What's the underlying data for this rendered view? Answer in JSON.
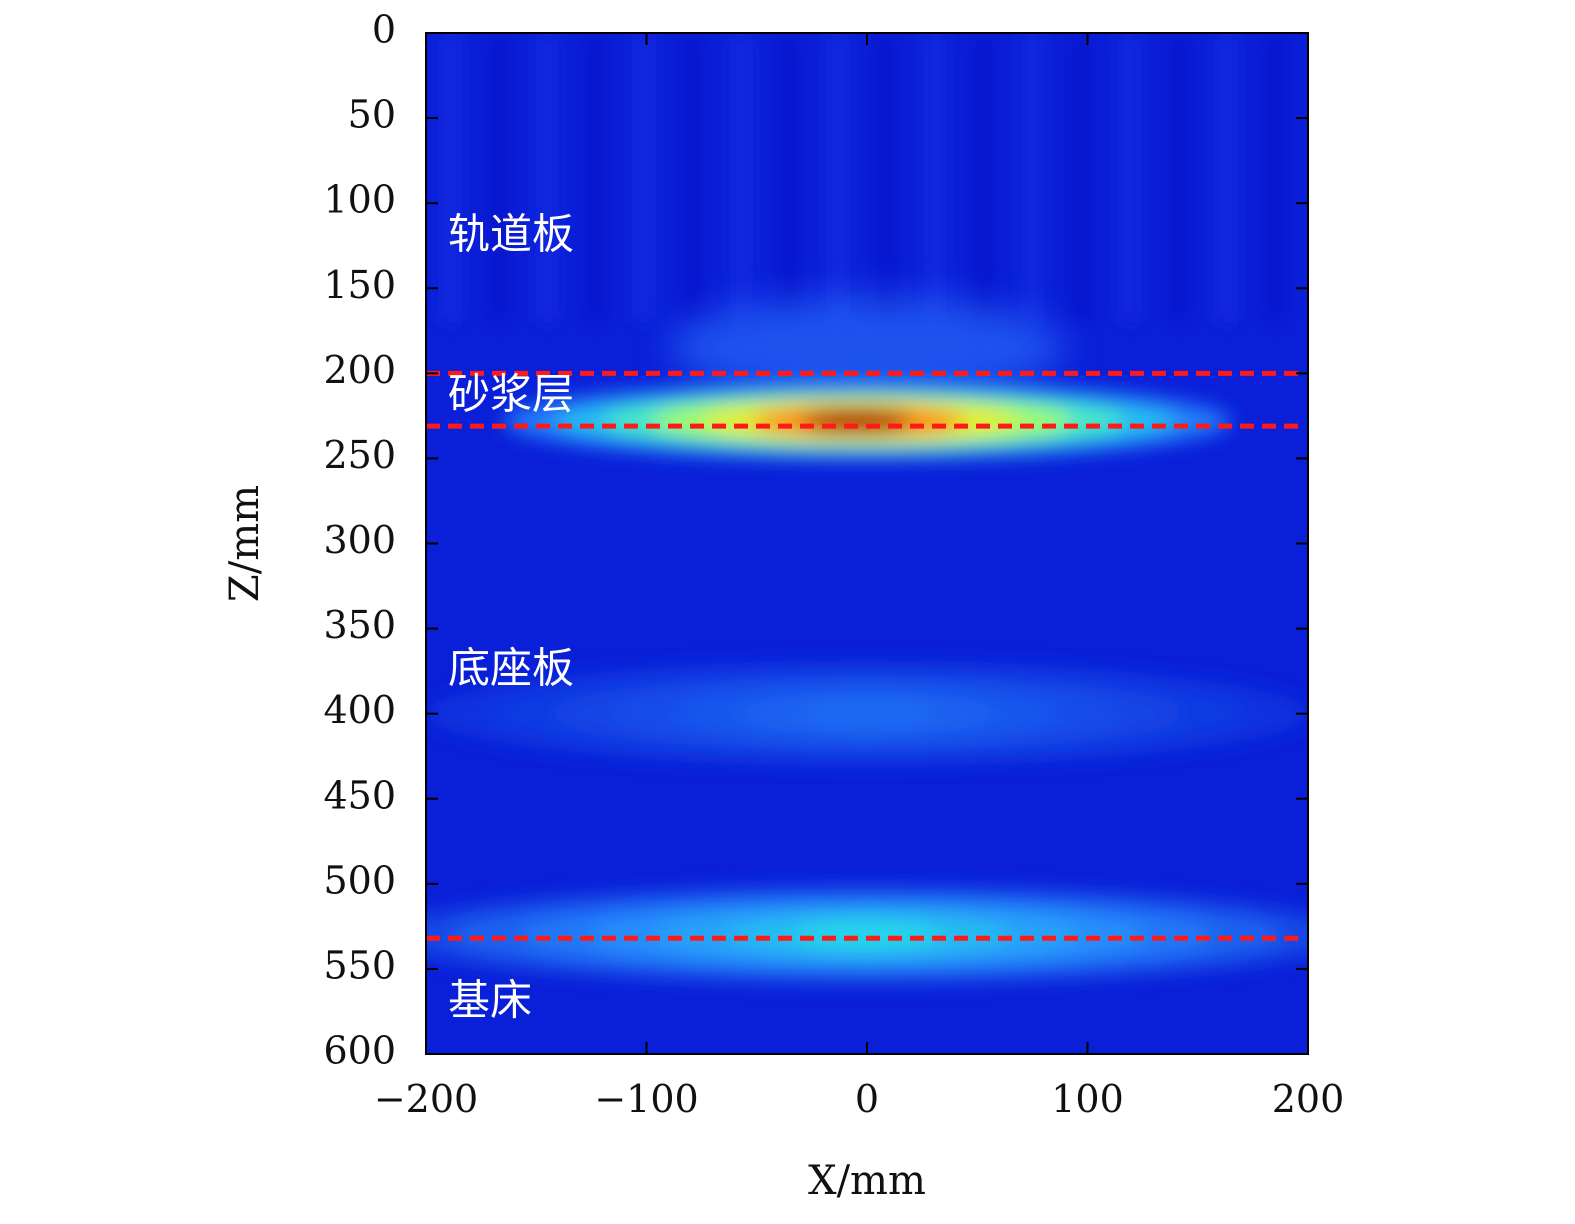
{
  "chart_data": {
    "type": "heatmap",
    "title": "",
    "xlabel": "X/mm",
    "ylabel": "Z/mm",
    "xlim": [
      -200,
      200
    ],
    "ylim": [
      0,
      600
    ],
    "y_inverted": true,
    "x_ticks": [
      -200,
      -100,
      0,
      100,
      200
    ],
    "x_tick_labels": [
      "−200",
      "−100",
      "0",
      "100",
      "200"
    ],
    "y_ticks": [
      0,
      50,
      100,
      150,
      200,
      250,
      300,
      350,
      400,
      450,
      500,
      550,
      600
    ],
    "y_tick_labels": [
      "0",
      "50",
      "100",
      "150",
      "200",
      "250",
      "300",
      "350",
      "400",
      "450",
      "500",
      "550",
      "600"
    ],
    "colormap": "jet",
    "colors": {
      "boundary_line": "#ff1a1a",
      "region_label": "#ffffff",
      "background_low": "#0a1fd8"
    },
    "layer_boundaries_z": [
      200,
      231,
      532
    ],
    "region_labels": [
      {
        "text": "轨道板",
        "x": -190,
        "z": 120
      },
      {
        "text": "砂浆层",
        "x": -190,
        "z": 214
      },
      {
        "text": "底座板",
        "x": -190,
        "z": 375
      },
      {
        "text": "基床",
        "x": -190,
        "z": 570
      }
    ],
    "intensity_features": [
      {
        "name": "mortar-layer-hotspot",
        "x_center": 0,
        "z_center": 228,
        "x_halfwidth": 165,
        "z_halfwidth": 22,
        "peak": 1.0
      },
      {
        "name": "base-bed-interface-band",
        "x_center": 0,
        "z_center": 530,
        "x_halfwidth": 220,
        "z_halfwidth": 28,
        "peak": 0.42
      },
      {
        "name": "base-slab-mid-band",
        "x_center": 0,
        "z_center": 400,
        "x_halfwidth": 200,
        "z_halfwidth": 30,
        "peak": 0.18
      }
    ]
  }
}
